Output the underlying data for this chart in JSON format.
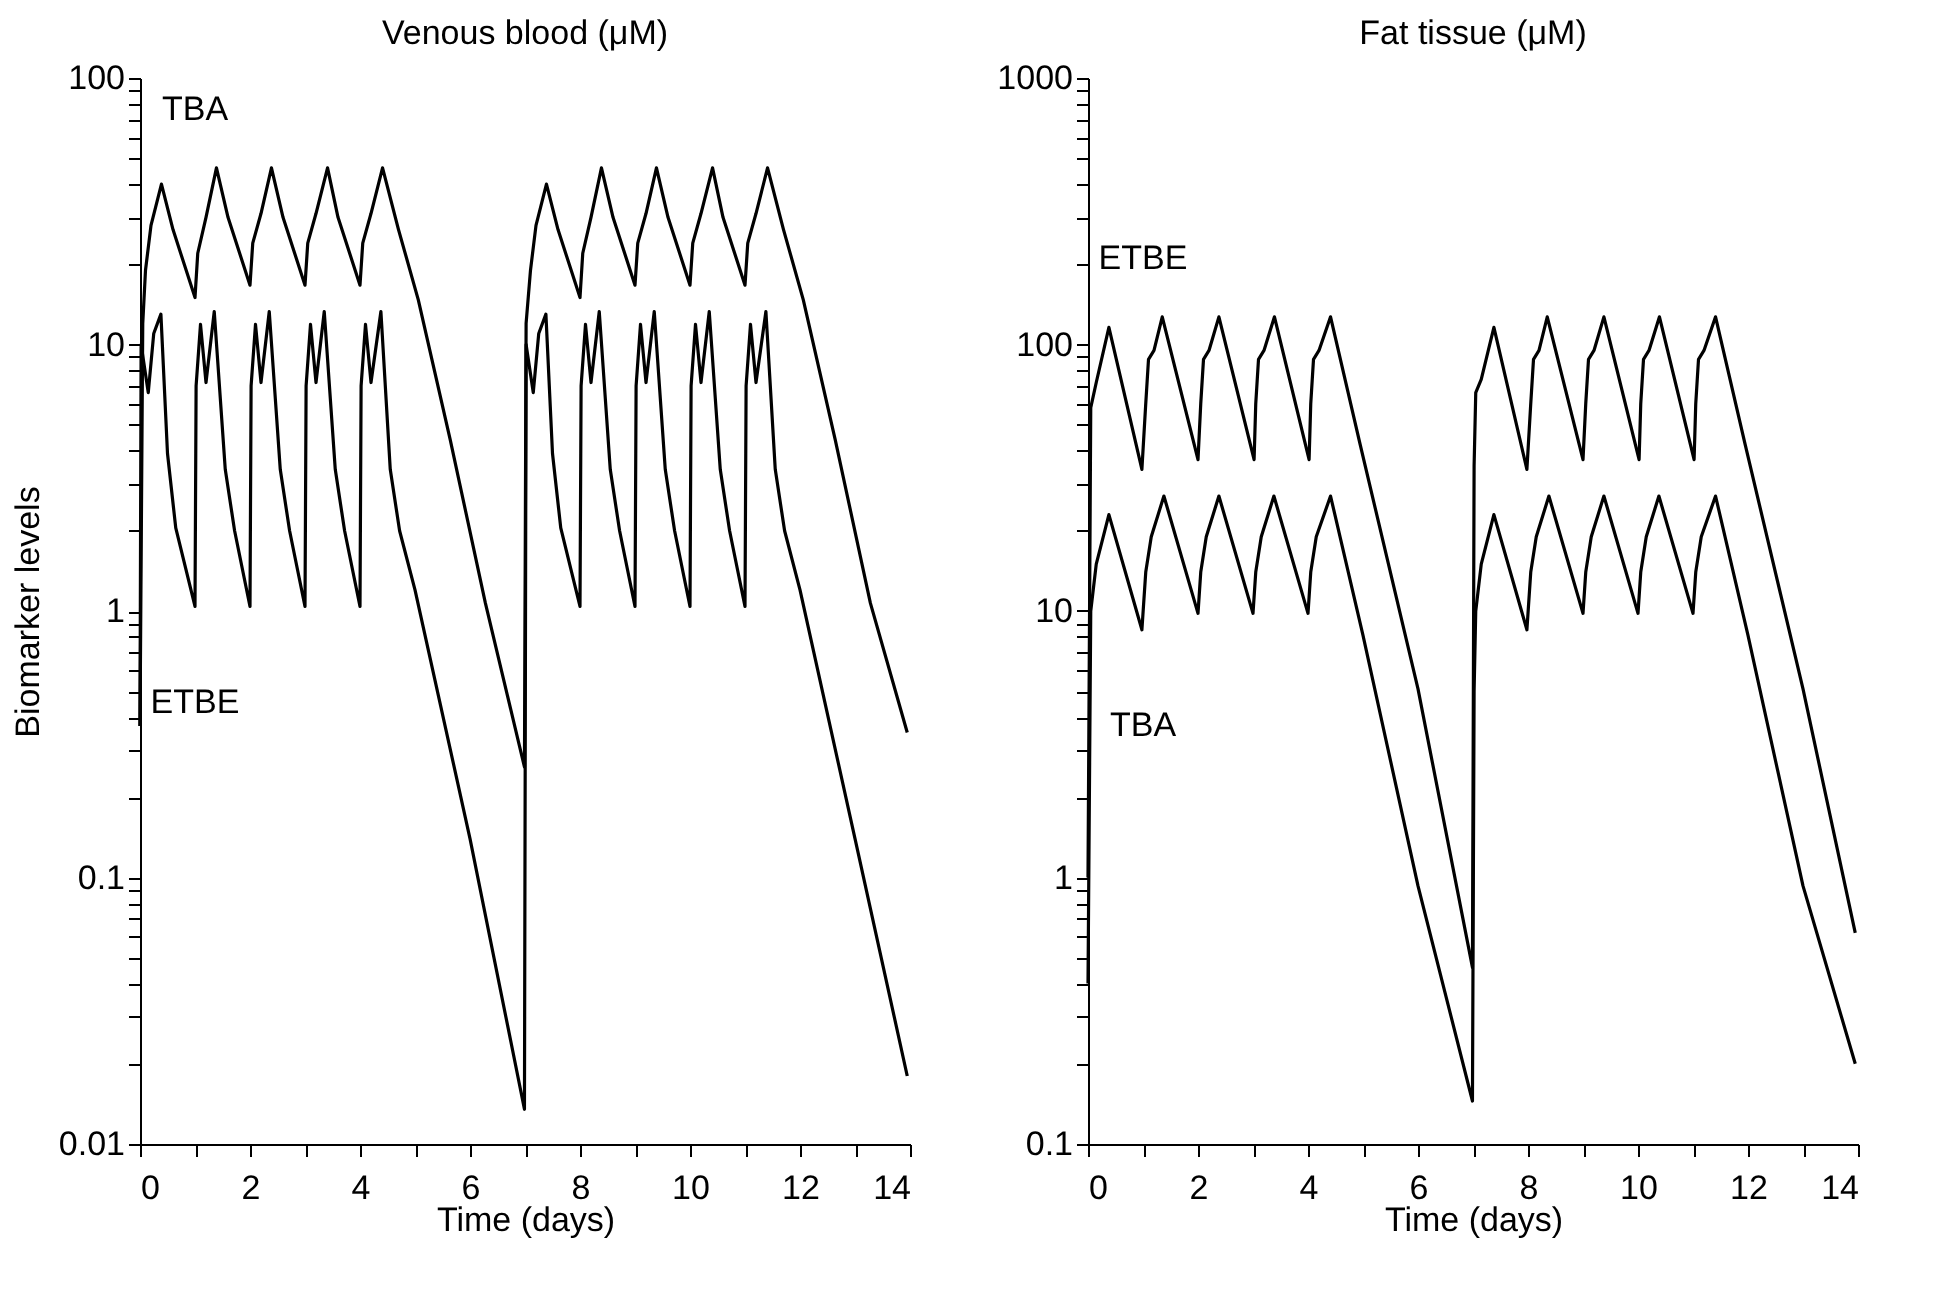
{
  "chart_data": [
    {
      "type": "line",
      "title": "Venous blood (μM)",
      "xlabel": "Time (days)",
      "ylabel": "Biomarker levels",
      "log": "y",
      "xlim": [
        0,
        14
      ],
      "ylim": [
        0.01,
        100
      ],
      "xticks": [
        0,
        {
          "value": 1,
          "label": null
        },
        2,
        {
          "value": 3,
          "label": null
        },
        4,
        {
          "value": 5,
          "label": null
        },
        6,
        {
          "value": 7,
          "label": null
        },
        8,
        {
          "value": 9,
          "label": null
        },
        10,
        {
          "value": 11,
          "label": null
        },
        12,
        {
          "value": 13,
          "label": null
        },
        14
      ],
      "yticks": [
        0.01,
        {
          "value": 0.02,
          "label": null
        },
        {
          "value": 0.03,
          "label": null
        },
        {
          "value": 0.04,
          "label": null
        },
        {
          "value": 0.05,
          "label": null
        },
        {
          "value": 0.06,
          "label": null
        },
        {
          "value": 0.07,
          "label": null
        },
        {
          "value": 0.08,
          "label": null
        },
        {
          "value": 0.09,
          "label": null
        },
        0.1,
        {
          "value": 0.2,
          "label": null
        },
        {
          "value": 0.3,
          "label": null
        },
        {
          "value": 0.4,
          "label": null
        },
        {
          "value": 0.5,
          "label": null
        },
        {
          "value": 0.6,
          "label": null
        },
        {
          "value": 0.7,
          "label": null
        },
        {
          "value": 0.8,
          "label": null
        },
        {
          "value": 0.9,
          "label": null
        },
        1,
        {
          "value": 2,
          "label": null
        },
        {
          "value": 3,
          "label": null
        },
        {
          "value": 4,
          "label": null
        },
        {
          "value": 5,
          "label": null
        },
        {
          "value": 6,
          "label": null
        },
        {
          "value": 7,
          "label": null
        },
        {
          "value": 8,
          "label": null
        },
        {
          "value": 9,
          "label": null
        },
        10,
        {
          "value": 20,
          "label": null
        },
        {
          "value": 30,
          "label": null
        },
        {
          "value": 40,
          "label": null
        },
        {
          "value": 50,
          "label": null
        },
        {
          "value": 60,
          "label": null
        },
        {
          "value": 70,
          "label": null
        },
        {
          "value": 80,
          "label": null
        },
        {
          "value": 90,
          "label": null
        },
        100
      ],
      "series": [
        {
          "name": "TBA",
          "color": "#000000",
          "x": [
            0,
            0.05,
            0.1,
            0.2,
            0.39,
            0.6,
            1.0,
            1.05,
            1.2,
            1.39,
            1.6,
            2.0,
            2.05,
            2.2,
            2.39,
            2.6,
            3.0,
            3.05,
            3.2,
            3.41,
            3.6,
            4.0,
            4.05,
            4.2,
            4.41,
            4.7,
            5.06,
            5.64,
            6.28,
            6.99,
            7.02,
            7.1,
            7.2,
            7.39,
            7.6,
            8.0,
            8.05,
            8.2,
            8.39,
            8.6,
            9.0,
            9.05,
            9.2,
            9.39,
            9.6,
            10.0,
            10.05,
            10.2,
            10.41,
            10.6,
            11.0,
            11.05,
            11.2,
            11.41,
            11.7,
            12.06,
            12.64,
            13.28,
            13.95
          ],
          "values": [
            0.37,
            12,
            19,
            28,
            40,
            27,
            15,
            22,
            30,
            46,
            30,
            16.7,
            24,
            31,
            46,
            30,
            16.7,
            24,
            31,
            46,
            30,
            16.7,
            24,
            31,
            46,
            27,
            14.7,
            4.4,
            1.07,
            0.26,
            12,
            19,
            28,
            40,
            27,
            15,
            22,
            30,
            46,
            30,
            16.7,
            24,
            31,
            46,
            30,
            16.7,
            24,
            31,
            46,
            30,
            16.7,
            24,
            31,
            46,
            27,
            14.7,
            4.4,
            1.07,
            0.35
          ]
        },
        {
          "name": "ETBE",
          "color": "#000000",
          "x": [
            0,
            0.02,
            0.15,
            0.25,
            0.38,
            0.5,
            0.65,
            1.0,
            1.02,
            1.1,
            1.2,
            1.35,
            1.55,
            1.72,
            2.0,
            2.02,
            2.1,
            2.2,
            2.35,
            2.55,
            2.72,
            3.0,
            3.02,
            3.1,
            3.2,
            3.35,
            3.55,
            3.72,
            4.0,
            4.02,
            4.1,
            4.2,
            4.38,
            4.55,
            4.72,
            5.0,
            6.0,
            6.99,
            7.02,
            7.15,
            7.25,
            7.38,
            7.5,
            7.65,
            8.0,
            8.02,
            8.1,
            8.2,
            8.35,
            8.55,
            8.72,
            9.0,
            9.02,
            9.1,
            9.2,
            9.35,
            9.55,
            9.72,
            10.0,
            10.02,
            10.1,
            10.2,
            10.35,
            10.55,
            10.72,
            11.0,
            11.02,
            11.1,
            11.2,
            11.38,
            11.55,
            11.72,
            12.0,
            13.0,
            13.95
          ],
          "values": [
            0.37,
            10,
            6.6,
            11,
            13,
            3.9,
            2.05,
            1.04,
            7,
            11.9,
            7.2,
            13.3,
            3.4,
            2.0,
            1.04,
            7,
            11.9,
            7.2,
            13.3,
            3.4,
            2.0,
            1.04,
            7,
            11.9,
            7.2,
            13.3,
            3.4,
            2.0,
            1.04,
            7,
            11.9,
            7.2,
            13.3,
            3.4,
            2.0,
            1.2,
            0.14,
            0.0135,
            10,
            6.6,
            11,
            13,
            3.9,
            2.05,
            1.04,
            7,
            11.9,
            7.2,
            13.3,
            3.4,
            2.0,
            1.04,
            7,
            11.9,
            7.2,
            13.3,
            3.4,
            2.0,
            1.04,
            7,
            11.9,
            7.2,
            13.3,
            3.4,
            2.0,
            1.04,
            7,
            11.9,
            7.2,
            13.3,
            3.4,
            2.0,
            1.2,
            0.14,
            0.018
          ]
        }
      ]
    },
    {
      "type": "line",
      "title": "Fat tissue (μM)",
      "xlabel": "Time (days)",
      "log": "y",
      "xlim": [
        0,
        14
      ],
      "ylim": [
        0.1,
        1000
      ],
      "xticks": [
        0,
        {
          "value": 1,
          "label": null
        },
        2,
        {
          "value": 3,
          "label": null
        },
        4,
        {
          "value": 5,
          "label": null
        },
        6,
        {
          "value": 7,
          "label": null
        },
        8,
        {
          "value": 9,
          "label": null
        },
        10,
        {
          "value": 11,
          "label": null
        },
        12,
        {
          "value": 13,
          "label": null
        },
        14
      ],
      "yticks": [
        0.1,
        {
          "value": 0.2,
          "label": null
        },
        {
          "value": 0.3,
          "label": null
        },
        {
          "value": 0.4,
          "label": null
        },
        {
          "value": 0.5,
          "label": null
        },
        {
          "value": 0.6,
          "label": null
        },
        {
          "value": 0.7,
          "label": null
        },
        {
          "value": 0.8,
          "label": null
        },
        {
          "value": 0.9,
          "label": null
        },
        1,
        {
          "value": 2,
          "label": null
        },
        {
          "value": 3,
          "label": null
        },
        {
          "value": 4,
          "label": null
        },
        {
          "value": 5,
          "label": null
        },
        {
          "value": 6,
          "label": null
        },
        {
          "value": 7,
          "label": null
        },
        {
          "value": 8,
          "label": null
        },
        {
          "value": 9,
          "label": null
        },
        10,
        {
          "value": 20,
          "label": null
        },
        {
          "value": 30,
          "label": null
        },
        {
          "value": 40,
          "label": null
        },
        {
          "value": 50,
          "label": null
        },
        {
          "value": 60,
          "label": null
        },
        {
          "value": 70,
          "label": null
        },
        {
          "value": 80,
          "label": null
        },
        {
          "value": 90,
          "label": null
        },
        100,
        {
          "value": 200,
          "label": null
        },
        {
          "value": 300,
          "label": null
        },
        {
          "value": 400,
          "label": null
        },
        {
          "value": 500,
          "label": null
        },
        {
          "value": 600,
          "label": null
        },
        {
          "value": 700,
          "label": null
        },
        {
          "value": 800,
          "label": null
        },
        {
          "value": 900,
          "label": null
        },
        1000
      ],
      "series": [
        {
          "name": "ETBE",
          "color": "#000000",
          "x": [
            0,
            0.05,
            0.15,
            0.38,
            0.98,
            1.05,
            1.1,
            1.2,
            1.35,
            2.0,
            2.05,
            2.1,
            2.2,
            2.38,
            3.02,
            3.05,
            3.1,
            3.2,
            3.39,
            4.02,
            4.05,
            4.1,
            4.2,
            4.41,
            4.95,
            6.0,
            6.99,
            7.02,
            7.05,
            7.15,
            7.38,
            7.98,
            8.05,
            8.1,
            8.2,
            8.35,
            9.0,
            9.05,
            9.1,
            9.2,
            9.38,
            10.02,
            10.05,
            10.1,
            10.2,
            10.39,
            11.02,
            11.05,
            11.1,
            11.2,
            11.41,
            11.95,
            13.0,
            13.95
          ],
          "values": [
            1,
            58,
            72,
            116,
            34,
            60,
            88,
            95,
            127,
            37,
            60,
            88,
            95,
            127,
            37,
            60,
            88,
            95,
            127,
            37,
            60,
            88,
            95,
            127,
            42,
            5.1,
            0.46,
            35,
            66,
            74,
            116,
            34,
            60,
            88,
            95,
            127,
            37,
            60,
            88,
            95,
            127,
            37,
            60,
            88,
            95,
            127,
            37,
            60,
            88,
            95,
            127,
            42,
            5.1,
            0.62
          ]
        },
        {
          "name": "TBA",
          "color": "#000000",
          "x": [
            0,
            0.05,
            0.15,
            0.38,
            0.98,
            1.05,
            1.15,
            1.38,
            2.0,
            2.05,
            2.15,
            2.38,
            3.0,
            3.05,
            3.15,
            3.38,
            4.0,
            4.05,
            4.15,
            4.41,
            5.0,
            6.0,
            6.99,
            7.02,
            7.05,
            7.15,
            7.38,
            7.98,
            8.05,
            8.15,
            8.38,
            9.0,
            9.05,
            9.15,
            9.38,
            10.0,
            10.05,
            10.15,
            10.38,
            11.0,
            11.05,
            11.15,
            11.41,
            12.0,
            13.0,
            13.95
          ],
          "values": [
            0.4,
            10,
            15,
            23,
            8.5,
            14,
            19,
            27,
            9.8,
            14,
            19,
            27,
            9.8,
            14,
            19,
            27,
            9.8,
            14,
            19,
            27,
            8.1,
            0.93,
            0.145,
            5,
            10,
            15,
            23,
            8.5,
            14,
            19,
            27,
            9.8,
            14,
            19,
            27,
            9.8,
            14,
            19,
            27,
            9.8,
            14,
            19,
            27,
            8.1,
            0.93,
            0.2
          ]
        }
      ]
    }
  ]
}
